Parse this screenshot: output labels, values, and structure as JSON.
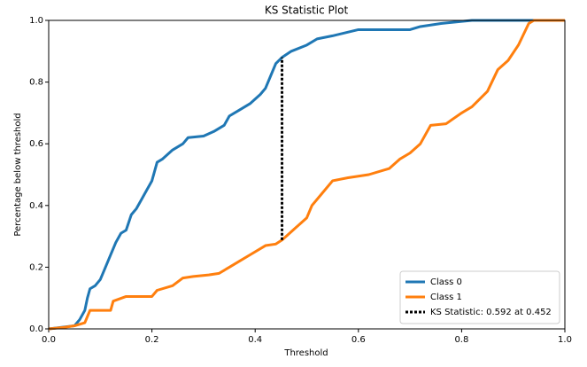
{
  "chart_data": {
    "type": "line",
    "title": "KS Statistic Plot",
    "x_label": "Threshold",
    "y_label": "Percentage below threshold",
    "xlim": [
      0,
      1
    ],
    "ylim": [
      0,
      1
    ],
    "xticks": [
      {
        "value": 0,
        "label": "0.0"
      },
      0.2,
      0.4,
      0.6,
      0.8,
      {
        "value": 1,
        "label": "1.0"
      }
    ],
    "yticks": [
      {
        "value": 0,
        "label": "0.0"
      },
      0.2,
      0.4,
      0.6,
      0.8,
      {
        "value": 1,
        "label": "1.0"
      }
    ],
    "legend": "lower right",
    "series": [
      {
        "name": "Class 0",
        "color": "#1f77b4",
        "style": "solid",
        "x": [
          0,
          0.05,
          0.06,
          0.07,
          0.075,
          0.08,
          0.09,
          0.1,
          0.11,
          0.12,
          0.13,
          0.14,
          0.15,
          0.16,
          0.17,
          0.18,
          0.19,
          0.2,
          0.21,
          0.22,
          0.24,
          0.26,
          0.27,
          0.3,
          0.32,
          0.34,
          0.35,
          0.37,
          0.39,
          0.41,
          0.42,
          0.43,
          0.44,
          0.452,
          0.47,
          0.5,
          0.52,
          0.55,
          0.6,
          0.7,
          0.72,
          0.76,
          0.82,
          1
        ],
        "values": [
          0,
          0.01,
          0.03,
          0.06,
          0.1,
          0.13,
          0.14,
          0.16,
          0.2,
          0.24,
          0.28,
          0.31,
          0.32,
          0.37,
          0.39,
          0.42,
          0.45,
          0.48,
          0.54,
          0.55,
          0.58,
          0.6,
          0.62,
          0.625,
          0.64,
          0.66,
          0.69,
          0.71,
          0.73,
          0.76,
          0.78,
          0.82,
          0.86,
          0.88,
          0.9,
          0.92,
          0.94,
          0.95,
          0.97,
          0.97,
          0.98,
          0.99,
          1,
          1
        ]
      },
      {
        "name": "Class 1",
        "color": "#ff7f0e",
        "style": "solid",
        "x": [
          0,
          0.03,
          0.05,
          0.07,
          0.08,
          0.12,
          0.125,
          0.15,
          0.2,
          0.21,
          0.24,
          0.26,
          0.28,
          0.31,
          0.33,
          0.35,
          0.37,
          0.39,
          0.42,
          0.44,
          0.452,
          0.46,
          0.48,
          0.5,
          0.51,
          0.53,
          0.55,
          0.58,
          0.62,
          0.66,
          0.68,
          0.7,
          0.72,
          0.74,
          0.77,
          0.8,
          0.82,
          0.85,
          0.87,
          0.89,
          0.91,
          0.93,
          0.94,
          1
        ],
        "values": [
          0,
          0.005,
          0.01,
          0.02,
          0.06,
          0.06,
          0.09,
          0.105,
          0.105,
          0.125,
          0.14,
          0.165,
          0.17,
          0.175,
          0.18,
          0.2,
          0.22,
          0.24,
          0.27,
          0.275,
          0.288,
          0.3,
          0.33,
          0.36,
          0.4,
          0.44,
          0.48,
          0.49,
          0.5,
          0.52,
          0.55,
          0.57,
          0.6,
          0.66,
          0.665,
          0.7,
          0.72,
          0.77,
          0.84,
          0.87,
          0.92,
          0.99,
          1,
          1
        ]
      },
      {
        "name": "KS Statistic: 0.592 at 0.452",
        "color": "#000000",
        "style": "dotted",
        "x": [
          0.452,
          0.452
        ],
        "values": [
          0.288,
          0.88
        ]
      }
    ]
  }
}
